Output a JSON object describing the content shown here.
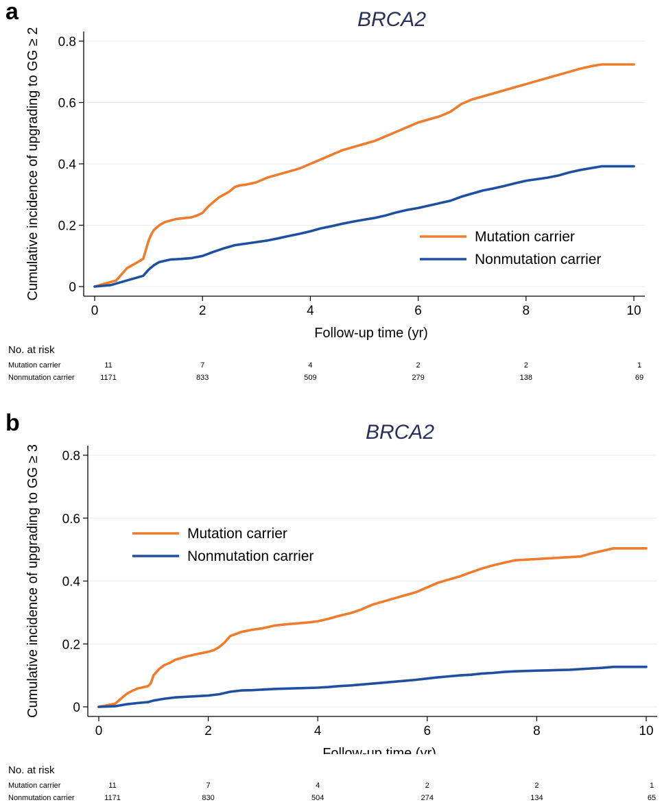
{
  "chart_data": [
    {
      "type": "line",
      "panel": "a",
      "title": "BRCA2",
      "xlabel": "Follow-up time (yr)",
      "ylabel": "Cumulative incidence of upgrading to GG ≥ 2",
      "xlim": [
        0,
        10
      ],
      "ylim": [
        0,
        0.8
      ],
      "xticks": [
        "0",
        "2",
        "4",
        "6",
        "8",
        "10"
      ],
      "yticks": [
        "0",
        "0.2",
        "0.4",
        "0.6",
        "0.8"
      ],
      "grid": "horizontal",
      "legend_position": "lower-right",
      "series": [
        {
          "name": "Mutation carrier",
          "color": "#ef7b2c",
          "x": [
            0,
            0.2,
            0.4,
            0.5,
            0.6,
            0.7,
            0.8,
            0.9,
            0.95,
            1.0,
            1.05,
            1.1,
            1.2,
            1.3,
            1.4,
            1.5,
            1.6,
            1.8,
            1.9,
            2.0,
            2.1,
            2.2,
            2.3,
            2.4,
            2.5,
            2.6,
            2.7,
            2.8,
            3.0,
            3.2,
            3.4,
            3.6,
            3.8,
            4.0,
            4.2,
            4.4,
            4.6,
            4.8,
            5.0,
            5.2,
            5.4,
            5.6,
            5.8,
            6.0,
            6.2,
            6.4,
            6.6,
            6.8,
            7.0,
            7.2,
            7.4,
            7.6,
            7.8,
            8.0,
            8.2,
            8.4,
            8.6,
            8.8,
            9.0,
            9.2,
            9.4,
            10.0
          ],
          "y": [
            0,
            0.01,
            0.02,
            0.04,
            0.06,
            0.07,
            0.08,
            0.09,
            0.12,
            0.15,
            0.17,
            0.185,
            0.2,
            0.21,
            0.215,
            0.22,
            0.222,
            0.226,
            0.232,
            0.24,
            0.26,
            0.275,
            0.29,
            0.3,
            0.31,
            0.325,
            0.33,
            0.332,
            0.34,
            0.355,
            0.365,
            0.375,
            0.385,
            0.4,
            0.415,
            0.43,
            0.445,
            0.455,
            0.465,
            0.475,
            0.49,
            0.505,
            0.52,
            0.535,
            0.545,
            0.555,
            0.57,
            0.595,
            0.61,
            0.62,
            0.63,
            0.64,
            0.65,
            0.66,
            0.67,
            0.68,
            0.69,
            0.7,
            0.71,
            0.718,
            0.724,
            0.724
          ]
        },
        {
          "name": "Nonmutation carrier",
          "color": "#1f4fa0",
          "x": [
            0,
            0.3,
            0.5,
            0.7,
            0.9,
            1.0,
            1.1,
            1.2,
            1.4,
            1.6,
            1.8,
            2.0,
            2.2,
            2.4,
            2.6,
            2.8,
            3.0,
            3.2,
            3.4,
            3.6,
            3.8,
            4.0,
            4.2,
            4.4,
            4.6,
            4.8,
            5.0,
            5.2,
            5.4,
            5.6,
            5.8,
            6.0,
            6.2,
            6.4,
            6.6,
            6.8,
            7.0,
            7.2,
            7.4,
            7.6,
            7.8,
            8.0,
            8.2,
            8.4,
            8.6,
            8.8,
            9.0,
            9.2,
            9.4,
            10.0
          ],
          "y": [
            0,
            0.005,
            0.015,
            0.025,
            0.035,
            0.055,
            0.07,
            0.08,
            0.088,
            0.09,
            0.093,
            0.1,
            0.113,
            0.125,
            0.135,
            0.14,
            0.145,
            0.15,
            0.157,
            0.165,
            0.172,
            0.18,
            0.19,
            0.197,
            0.205,
            0.212,
            0.218,
            0.224,
            0.232,
            0.242,
            0.25,
            0.256,
            0.264,
            0.272,
            0.28,
            0.293,
            0.303,
            0.313,
            0.32,
            0.328,
            0.337,
            0.345,
            0.35,
            0.355,
            0.362,
            0.372,
            0.38,
            0.386,
            0.392,
            0.392
          ]
        }
      ],
      "risk_table": {
        "header": "No. at risk",
        "times": [
          0,
          2,
          4,
          6,
          8,
          10
        ],
        "rows": [
          {
            "label": "Mutation carrier",
            "values": [
              "11",
              "7",
              "4",
              "2",
              "2",
              "1"
            ]
          },
          {
            "label": "Nonmutation carrier",
            "values": [
              "1171",
              "833",
              "509",
              "279",
              "138",
              "69"
            ]
          }
        ]
      }
    },
    {
      "type": "line",
      "panel": "b",
      "title": "BRCA2",
      "xlabel": "Follow-up time (yr)",
      "ylabel": "Cumulative incidence of upgrading to GG ≥ 3",
      "xlim": [
        0,
        10
      ],
      "ylim": [
        0,
        0.8
      ],
      "xticks": [
        "0",
        "2",
        "4",
        "6",
        "8",
        "10"
      ],
      "yticks": [
        "0",
        "0.2",
        "0.4",
        "0.6",
        "0.8"
      ],
      "grid": "horizontal",
      "legend_position": "upper-left",
      "series": [
        {
          "name": "Mutation carrier",
          "color": "#ef7b2c",
          "x": [
            0,
            0.3,
            0.4,
            0.5,
            0.6,
            0.7,
            0.8,
            0.9,
            0.95,
            1.0,
            1.1,
            1.2,
            1.3,
            1.4,
            1.6,
            1.8,
            2.0,
            2.1,
            2.2,
            2.3,
            2.4,
            2.6,
            2.8,
            3.0,
            3.2,
            3.4,
            3.6,
            3.8,
            4.0,
            4.2,
            4.4,
            4.6,
            4.8,
            5.0,
            5.2,
            5.4,
            5.6,
            5.8,
            6.0,
            6.2,
            6.4,
            6.6,
            6.8,
            7.0,
            7.2,
            7.4,
            7.6,
            7.8,
            8.0,
            8.2,
            8.4,
            8.6,
            8.8,
            9.0,
            9.2,
            9.4,
            10.0
          ],
          "y": [
            0,
            0.01,
            0.025,
            0.04,
            0.05,
            0.058,
            0.062,
            0.066,
            0.075,
            0.1,
            0.12,
            0.133,
            0.14,
            0.15,
            0.16,
            0.168,
            0.175,
            0.18,
            0.19,
            0.205,
            0.225,
            0.238,
            0.245,
            0.25,
            0.258,
            0.262,
            0.265,
            0.268,
            0.272,
            0.28,
            0.29,
            0.298,
            0.31,
            0.325,
            0.335,
            0.345,
            0.355,
            0.365,
            0.38,
            0.395,
            0.405,
            0.415,
            0.428,
            0.44,
            0.45,
            0.458,
            0.466,
            0.468,
            0.47,
            0.472,
            0.474,
            0.476,
            0.478,
            0.488,
            0.496,
            0.504,
            0.504
          ]
        },
        {
          "name": "Nonmutation carrier",
          "color": "#1f4fa0",
          "x": [
            0,
            0.3,
            0.5,
            0.7,
            0.9,
            1.0,
            1.2,
            1.4,
            1.6,
            1.8,
            2.0,
            2.2,
            2.4,
            2.6,
            2.8,
            3.0,
            3.2,
            3.4,
            3.6,
            3.8,
            4.0,
            4.2,
            4.4,
            4.6,
            4.8,
            5.0,
            5.2,
            5.4,
            5.6,
            5.8,
            6.0,
            6.2,
            6.4,
            6.6,
            6.8,
            7.0,
            7.2,
            7.4,
            7.6,
            7.8,
            8.0,
            8.2,
            8.4,
            8.6,
            8.8,
            9.0,
            9.2,
            9.4,
            10.0
          ],
          "y": [
            0,
            0.002,
            0.008,
            0.012,
            0.015,
            0.02,
            0.026,
            0.03,
            0.032,
            0.034,
            0.036,
            0.04,
            0.048,
            0.052,
            0.053,
            0.055,
            0.057,
            0.058,
            0.059,
            0.06,
            0.061,
            0.063,
            0.066,
            0.068,
            0.071,
            0.074,
            0.077,
            0.08,
            0.083,
            0.086,
            0.09,
            0.094,
            0.097,
            0.1,
            0.102,
            0.106,
            0.108,
            0.111,
            0.113,
            0.114,
            0.115,
            0.116,
            0.117,
            0.118,
            0.12,
            0.122,
            0.124,
            0.127,
            0.127
          ]
        }
      ],
      "risk_table": {
        "header": "No. at risk",
        "times": [
          0,
          2,
          4,
          6,
          8,
          10
        ],
        "rows": [
          {
            "label": "Mutation carrier",
            "values": [
              "11",
              "7",
              "4",
              "2",
              "2",
              "1"
            ]
          },
          {
            "label": "Nonmutation carrier",
            "values": [
              "1171",
              "830",
              "504",
              "274",
              "134",
              "65"
            ]
          }
        ]
      }
    }
  ],
  "panels": [
    {
      "letter": "a"
    },
    {
      "letter": "b"
    }
  ]
}
